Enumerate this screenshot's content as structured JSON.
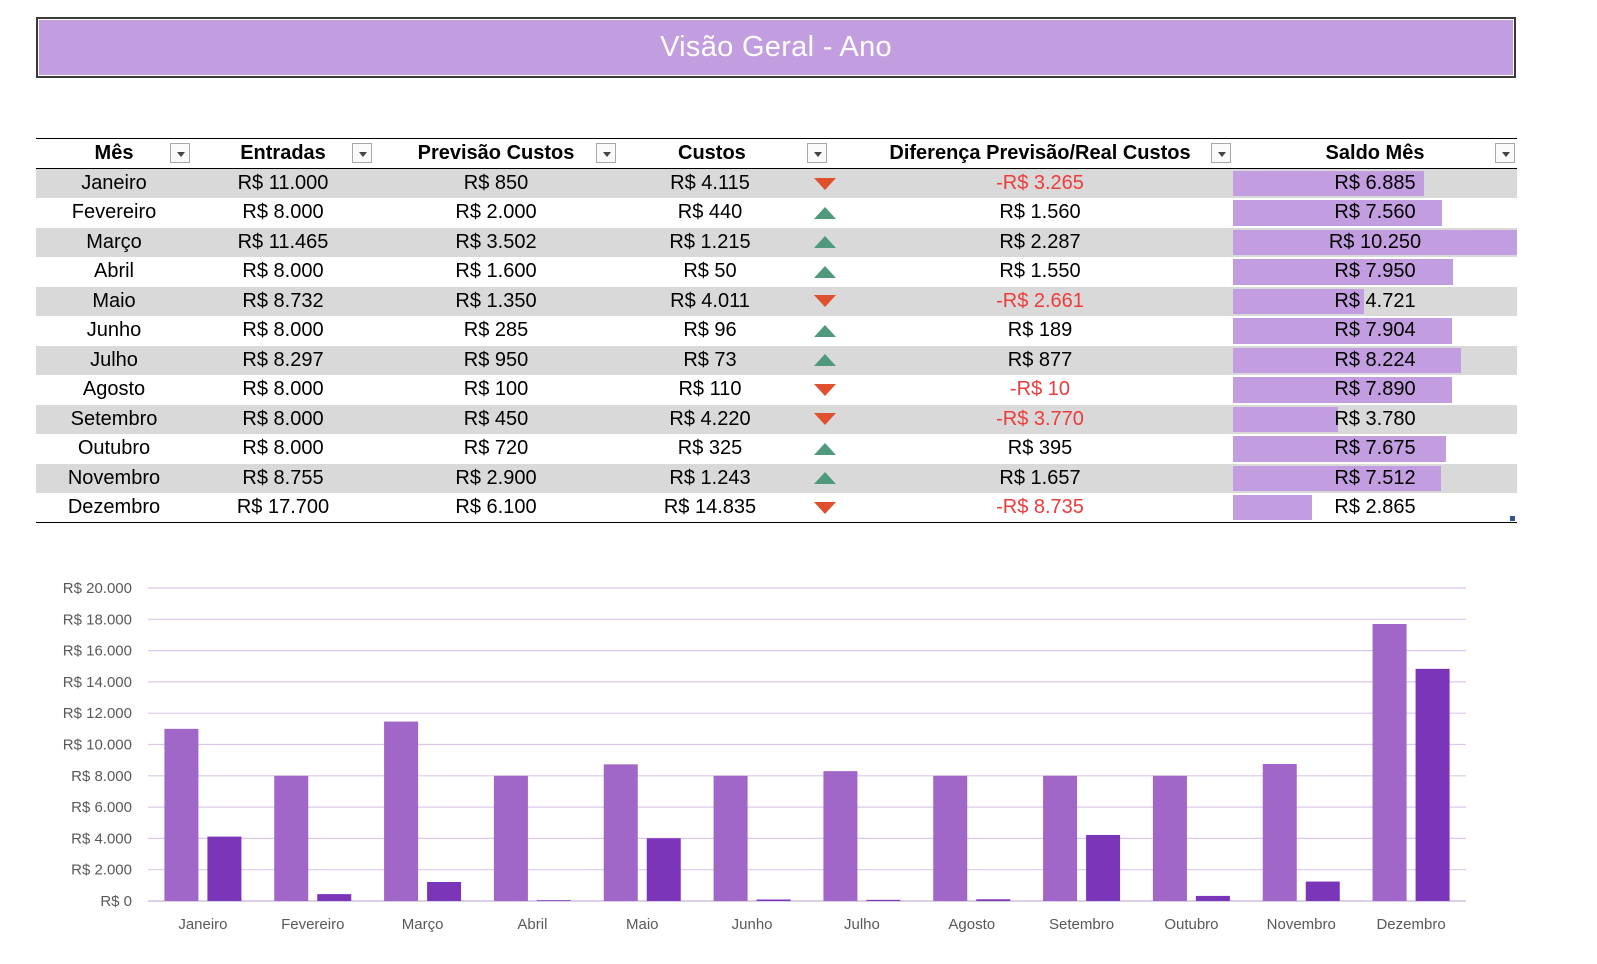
{
  "title": "Visão Geral - Ano",
  "table": {
    "headers": {
      "mes": "Mês",
      "entradas": "Entradas",
      "previsao": "Previsão Custos",
      "custos": "Custos",
      "diferenca": "Diferença Previsão/Real Custos",
      "saldo": "Saldo Mês"
    },
    "rows": [
      {
        "mes": "Janeiro",
        "entradas": "R$ 11.000",
        "previsao": "R$ 850",
        "custos": "R$ 4.115",
        "trend": "down",
        "diferenca": "-R$ 3.265",
        "saldo": "R$ 6.885",
        "saldo_value": 6885
      },
      {
        "mes": "Fevereiro",
        "entradas": "R$ 8.000",
        "previsao": "R$ 2.000",
        "custos": "R$ 440",
        "trend": "up",
        "diferenca": "R$ 1.560",
        "saldo": "R$ 7.560",
        "saldo_value": 7560
      },
      {
        "mes": "Março",
        "entradas": "R$ 11.465",
        "previsao": "R$ 3.502",
        "custos": "R$ 1.215",
        "trend": "up",
        "diferenca": "R$ 2.287",
        "saldo": "R$ 10.250",
        "saldo_value": 10250
      },
      {
        "mes": "Abril",
        "entradas": "R$ 8.000",
        "previsao": "R$ 1.600",
        "custos": "R$ 50",
        "trend": "up",
        "diferenca": "R$ 1.550",
        "saldo": "R$ 7.950",
        "saldo_value": 7950
      },
      {
        "mes": "Maio",
        "entradas": "R$ 8.732",
        "previsao": "R$ 1.350",
        "custos": "R$ 4.011",
        "trend": "down",
        "diferenca": "-R$ 2.661",
        "saldo": "R$ 4.721",
        "saldo_value": 4721
      },
      {
        "mes": "Junho",
        "entradas": "R$ 8.000",
        "previsao": "R$ 285",
        "custos": "R$ 96",
        "trend": "up",
        "diferenca": "R$ 189",
        "saldo": "R$ 7.904",
        "saldo_value": 7904
      },
      {
        "mes": "Julho",
        "entradas": "R$ 8.297",
        "previsao": "R$ 950",
        "custos": "R$ 73",
        "trend": "up",
        "diferenca": "R$ 877",
        "saldo": "R$ 8.224",
        "saldo_value": 8224
      },
      {
        "mes": "Agosto",
        "entradas": "R$ 8.000",
        "previsao": "R$ 100",
        "custos": "R$ 110",
        "trend": "down",
        "diferenca": "-R$ 10",
        "saldo": "R$ 7.890",
        "saldo_value": 7890
      },
      {
        "mes": "Setembro",
        "entradas": "R$ 8.000",
        "previsao": "R$ 450",
        "custos": "R$ 4.220",
        "trend": "down",
        "diferenca": "-R$ 3.770",
        "saldo": "R$ 3.780",
        "saldo_value": 3780
      },
      {
        "mes": "Outubro",
        "entradas": "R$ 8.000",
        "previsao": "R$ 720",
        "custos": "R$ 325",
        "trend": "up",
        "diferenca": "R$ 395",
        "saldo": "R$ 7.675",
        "saldo_value": 7675
      },
      {
        "mes": "Novembro",
        "entradas": "R$ 8.755",
        "previsao": "R$ 2.900",
        "custos": "R$ 1.243",
        "trend": "up",
        "diferenca": "R$ 1.657",
        "saldo": "R$ 7.512",
        "saldo_value": 7512
      },
      {
        "mes": "Dezembro",
        "entradas": "R$ 17.700",
        "previsao": "R$ 6.100",
        "custos": "R$ 14.835",
        "trend": "down",
        "diferenca": "-R$ 8.735",
        "saldo": "R$ 2.865",
        "saldo_value": 2865
      }
    ],
    "saldo_bar_max": 10250
  },
  "colors": {
    "accent": "#c29ddf",
    "band_gray": "#d9d9d9",
    "negative_text": "#ee3b3b",
    "trend_up": "#4f9a7c",
    "trend_down": "#e0502e",
    "series_entradas": "#a066c8",
    "series_custos": "#7b35b8",
    "gridline": "#dcc8ea"
  },
  "chart_data": {
    "type": "bar",
    "categories": [
      "Janeiro",
      "Fevereiro",
      "Março",
      "Abril",
      "Maio",
      "Junho",
      "Julho",
      "Agosto",
      "Setembro",
      "Outubro",
      "Novembro",
      "Dezembro"
    ],
    "series": [
      {
        "values": [
          11000,
          8000,
          11465,
          8000,
          8732,
          8000,
          8297,
          8000,
          8000,
          8000,
          8755,
          17700
        ]
      },
      {
        "values": [
          4115,
          440,
          1215,
          50,
          4011,
          96,
          73,
          110,
          4220,
          325,
          1243,
          14835
        ]
      }
    ],
    "y_ticks": [
      "R$ 0",
      "R$ 2.000",
      "R$ 4.000",
      "R$ 6.000",
      "R$ 8.000",
      "R$ 10.000",
      "R$ 12.000",
      "R$ 14.000",
      "R$ 16.000",
      "R$ 18.000",
      "R$ 20.000"
    ],
    "ylim": [
      0,
      20000
    ],
    "grid": true,
    "legend": "none"
  }
}
